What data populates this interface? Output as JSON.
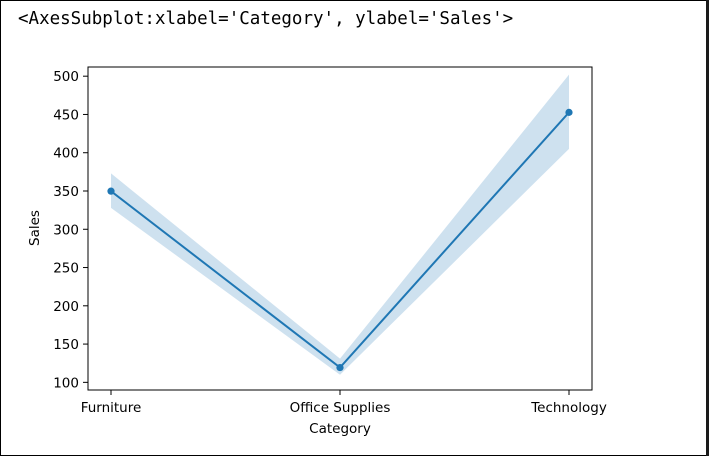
{
  "output_text": "<AxesSubplot:xlabel='Category', ylabel='Sales'>",
  "chart_data": {
    "type": "line",
    "title": "",
    "xlabel": "Category",
    "ylabel": "Sales",
    "categories": [
      "Furniture",
      "Office Supplies",
      "Technology"
    ],
    "series": [
      {
        "values": [
          349.8,
          119.3,
          452.7
        ],
        "ci_lower": [
          328,
          110,
          405
        ],
        "ci_upper": [
          373,
          131,
          502
        ],
        "color": "#1f77b4",
        "markers": true
      }
    ],
    "yticks": [
      100,
      150,
      200,
      250,
      300,
      350,
      400,
      450,
      500
    ],
    "ylim": [
      90,
      512
    ],
    "grid": false,
    "legend": false
  }
}
